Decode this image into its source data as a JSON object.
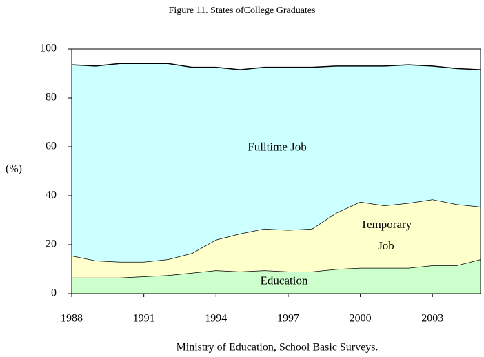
{
  "chart_data": {
    "type": "stacked_area",
    "title": "Figure 11. States ofCollege Graduates",
    "source": "Ministry of Education, School Basic Surveys.",
    "y_label": "(%)",
    "x": [
      1988,
      1989,
      1990,
      1991,
      1992,
      1993,
      1994,
      1995,
      1996,
      1997,
      1998,
      1999,
      2000,
      2001,
      2002,
      2003,
      2004,
      2005
    ],
    "xlim": [
      1988,
      2005
    ],
    "xticks": [
      1988,
      1991,
      1994,
      1997,
      2000,
      2003
    ],
    "ylim": [
      0,
      100
    ],
    "yticks": [
      0,
      20,
      40,
      60,
      80,
      100
    ],
    "series": [
      {
        "name": "Education",
        "color": "#ccffcc",
        "values": [
          6.5,
          6.5,
          6.5,
          7,
          7.5,
          8.5,
          9.5,
          9,
          9.5,
          9,
          9,
          10,
          10.5,
          10.5,
          10.5,
          11.5,
          11.5,
          14
        ]
      },
      {
        "name": "Temporary Job",
        "color": "#ffffcc",
        "values": [
          9,
          7,
          6.5,
          6,
          6.5,
          8,
          12.5,
          15.5,
          17,
          17,
          17.5,
          23,
          27,
          25.5,
          26.5,
          27,
          25,
          21.5
        ]
      },
      {
        "name": "Fulltime Job",
        "color": "#ccffff",
        "values": [
          78,
          79.5,
          81,
          81,
          80,
          76,
          70.5,
          67,
          66,
          66.5,
          66,
          60,
          55.5,
          57,
          56.5,
          54.5,
          55.5,
          56
        ]
      }
    ]
  }
}
